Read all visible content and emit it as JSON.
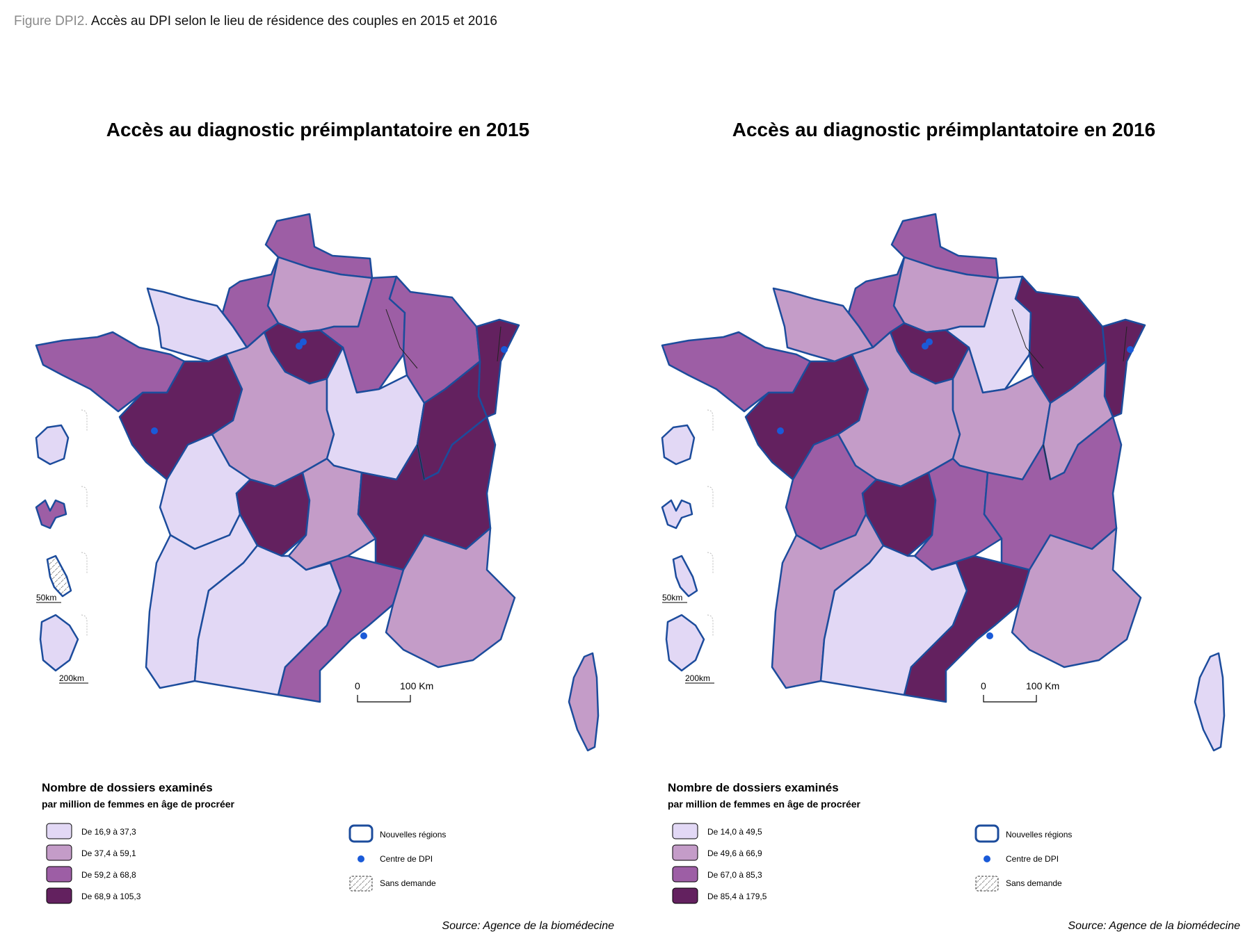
{
  "caption": {
    "label": "Figure DPI2.",
    "text": "Accès au DPI selon le lieu de résidence des couples en 2015 et 2016"
  },
  "colors": {
    "class1": "#e2d8f5",
    "class2": "#c49cc8",
    "class3": "#9d5ea5",
    "class4": "#63215f",
    "region_border": "#1c4c9c",
    "dept_border": "#222222",
    "centre": "#1a5ad8"
  },
  "maps": [
    {
      "title": "Accès au diagnostic préimplantatoire en 2015",
      "legend": {
        "title": "Nombre de dossiers examinés",
        "subtitle": "par million de femmes en âge de procréer",
        "classes": [
          "De 16,9 à 37,3",
          "De 37,4 à 59,1",
          "De 59,2 à 68,8",
          "De 68,9 à 105,3"
        ],
        "symbols": [
          "Nouvelles régions",
          "Centre de DPI",
          "Sans demande"
        ]
      },
      "scale": {
        "zero": "0",
        "length": "100 Km"
      },
      "insets": {
        "small_scale": "50km",
        "large_scale": "200km"
      },
      "source": "Source: Agence de la biomédecine",
      "regions": {
        "hauts_de_france_nord": 3,
        "hauts_de_france_sud": 2,
        "normandie_est": 3,
        "normandie_ouest": 1,
        "ile_de_france": 4,
        "champagne": 3,
        "lorraine": 3,
        "alsace": 4,
        "bretagne": 3,
        "pays_de_la_loire": 4,
        "centre": 2,
        "bourgogne": 1,
        "franche_comte": 4,
        "poitou": 1,
        "limousin": 4,
        "auvergne": 2,
        "rhone_alpes": 4,
        "aquitaine": 1,
        "midi_pyrenees": 1,
        "languedoc": 3,
        "paca": 2,
        "corse": 2,
        "reunion": 1,
        "guadeloupe": 3,
        "martinique": 0,
        "guyane": 1
      }
    },
    {
      "title": "Accès au diagnostic préimplantatoire en 2016",
      "legend": {
        "title": "Nombre de dossiers examinés",
        "subtitle": "par million de femmes en âge de procréer",
        "classes": [
          "De 14,0 à 49,5",
          "De 49,6 à 66,9",
          "De 67,0 à 85,3",
          "De 85,4 à 179,5"
        ],
        "symbols": [
          "Nouvelles régions",
          "Centre de DPI",
          "Sans demande"
        ]
      },
      "scale": {
        "zero": "0",
        "length": "100 Km"
      },
      "insets": {
        "small_scale": "50km",
        "large_scale": "200km"
      },
      "source": "Source: Agence de la biomédecine",
      "regions": {
        "hauts_de_france_nord": 3,
        "hauts_de_france_sud": 2,
        "normandie_est": 3,
        "normandie_ouest": 2,
        "ile_de_france": 4,
        "champagne": 1,
        "lorraine": 4,
        "alsace": 4,
        "bretagne": 3,
        "pays_de_la_loire": 4,
        "centre": 2,
        "bourgogne": 2,
        "franche_comte": 2,
        "poitou": 3,
        "limousin": 4,
        "auvergne": 3,
        "rhone_alpes": 3,
        "aquitaine": 2,
        "midi_pyrenees": 1,
        "languedoc": 4,
        "paca": 2,
        "corse": 1,
        "reunion": 1,
        "guadeloupe": 1,
        "martinique": 1,
        "guyane": 1
      }
    }
  ]
}
